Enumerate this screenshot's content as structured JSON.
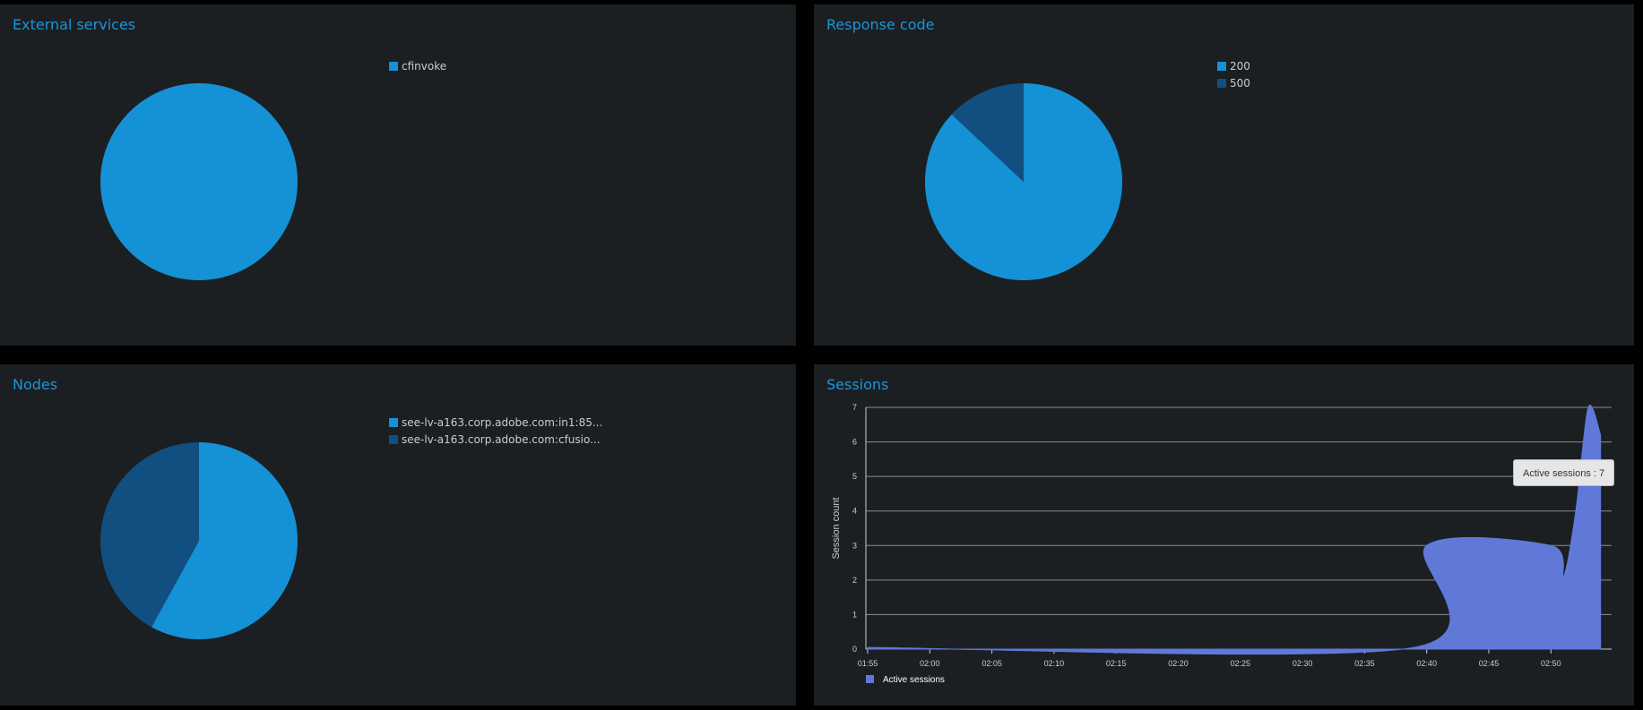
{
  "chart_data": [
    {
      "type": "pie",
      "title": "External services",
      "slices": [
        {
          "label": "cfinvoke",
          "value": 100,
          "color": "#1591d6"
        }
      ]
    },
    {
      "type": "pie",
      "title": "Response code",
      "slices": [
        {
          "label": "200",
          "value": 87,
          "color": "#1591d6"
        },
        {
          "label": "500",
          "value": 13,
          "color": "#114f80"
        }
      ]
    },
    {
      "type": "pie",
      "title": "Nodes",
      "slices": [
        {
          "label": "see-lv-a163.corp.adobe.com:in1:85...",
          "value": 58,
          "color": "#1591d6"
        },
        {
          "label": "see-lv-a163.corp.adobe.com:cfusio...",
          "value": 42,
          "color": "#114f80"
        }
      ]
    },
    {
      "type": "area",
      "title": "Sessions",
      "ylabel": "Session count",
      "xlabel": "",
      "ylim": [
        0,
        7
      ],
      "yticks": [
        "0",
        "1",
        "2",
        "3",
        "4",
        "5",
        "6",
        "7"
      ],
      "xticks": [
        "01:55",
        "02:00",
        "02:05",
        "02:10",
        "02:15",
        "02:20",
        "02:25",
        "02:30",
        "02:35",
        "02:40",
        "02:45",
        "02:50"
      ],
      "grid": true,
      "legend": "bottom-left",
      "series": [
        {
          "name": "Active sessions",
          "color": "#6079d9",
          "points": [
            [
              "01:55",
              0.05
            ],
            [
              "02:39",
              0.05
            ],
            [
              "02:40",
              3
            ],
            [
              "02:50",
              3
            ],
            [
              "02:51",
              2.1
            ],
            [
              "02:52",
              4
            ],
            [
              "02:53",
              7
            ],
            [
              "02:54",
              6.2
            ]
          ]
        }
      ],
      "tooltip": "Active sessions : 7"
    }
  ]
}
